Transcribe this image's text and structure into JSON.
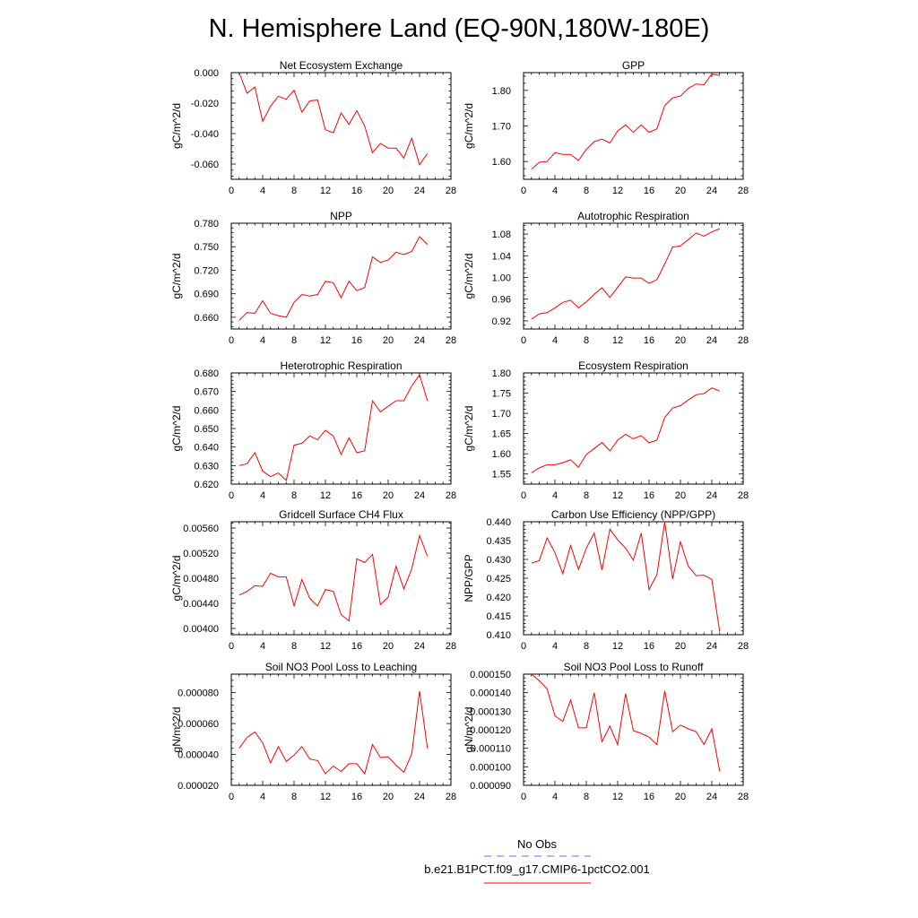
{
  "figure": {
    "title": "N. Hemisphere Land (EQ-90N,180W-180E)",
    "legend": [
      {
        "label": "No Obs",
        "color": "#6666ff",
        "dash": "dashed"
      },
      {
        "label": "b.e21.B1PCT.f09_g17.CMIP6-1pctCO2.001",
        "color": "#ff0000",
        "dash": "solid"
      }
    ]
  },
  "chart_data": [
    {
      "type": "line",
      "title": "Net Ecosystem Exchange",
      "ylabel": "gC/m^2/d",
      "xlim": [
        0,
        28
      ],
      "ylim": [
        -0.07,
        0.0
      ],
      "xticks": [
        "0",
        "4",
        "8",
        "12",
        "16",
        "20",
        "24",
        "28"
      ],
      "yticks": [
        "0.000",
        "-0.020",
        "-0.040",
        "-0.060"
      ],
      "yticks_values": [
        0.0,
        -0.02,
        -0.04,
        -0.06
      ],
      "series": [
        {
          "color": "#ff0000",
          "x": [
            1,
            2,
            3,
            4,
            5,
            6,
            7,
            8,
            9,
            10,
            11,
            12,
            13,
            14,
            15,
            16,
            17,
            18,
            19,
            20,
            21,
            22,
            23,
            24,
            25
          ],
          "y": [
            0.0,
            -0.0135,
            -0.0095,
            -0.032,
            -0.022,
            -0.0155,
            -0.0175,
            -0.0115,
            -0.026,
            -0.0185,
            -0.018,
            -0.0375,
            -0.0395,
            -0.0265,
            -0.034,
            -0.025,
            -0.035,
            -0.0525,
            -0.0465,
            -0.0495,
            -0.0495,
            -0.056,
            -0.043,
            -0.0605,
            -0.053
          ]
        }
      ]
    },
    {
      "type": "line",
      "title": "GPP",
      "ylabel": "gC/m^2/d",
      "xlim": [
        0,
        28
      ],
      "ylim": [
        1.55,
        1.85
      ],
      "xticks": [
        "0",
        "4",
        "8",
        "12",
        "16",
        "20",
        "24",
        "28"
      ],
      "yticks": [
        "1.60",
        "1.70",
        "1.80"
      ],
      "yticks_values": [
        1.6,
        1.7,
        1.8
      ],
      "series": [
        {
          "color": "#ff0000",
          "x": [
            1,
            2,
            3,
            4,
            5,
            6,
            7,
            8,
            9,
            10,
            11,
            12,
            13,
            14,
            15,
            16,
            17,
            18,
            19,
            20,
            21,
            22,
            23,
            24,
            25
          ],
          "y": [
            1.578,
            1.598,
            1.6,
            1.625,
            1.62,
            1.62,
            1.603,
            1.634,
            1.656,
            1.663,
            1.652,
            1.686,
            1.703,
            1.682,
            1.703,
            1.682,
            1.692,
            1.758,
            1.779,
            1.784,
            1.806,
            1.818,
            1.816,
            1.846,
            1.842
          ]
        }
      ]
    },
    {
      "type": "line",
      "title": "NPP",
      "ylabel": "gC/m^2/d",
      "xlim": [
        0,
        28
      ],
      "ylim": [
        0.645,
        0.78
      ],
      "xticks": [
        "0",
        "4",
        "8",
        "12",
        "16",
        "20",
        "24",
        "28"
      ],
      "yticks": [
        "0.660",
        "0.690",
        "0.720",
        "0.750",
        "0.780"
      ],
      "yticks_values": [
        0.66,
        0.69,
        0.72,
        0.75,
        0.78
      ],
      "series": [
        {
          "color": "#ff0000",
          "x": [
            1,
            2,
            3,
            4,
            5,
            6,
            7,
            8,
            9,
            10,
            11,
            12,
            13,
            14,
            15,
            16,
            17,
            18,
            19,
            20,
            21,
            22,
            23,
            24,
            25
          ],
          "y": [
            0.656,
            0.666,
            0.665,
            0.681,
            0.665,
            0.662,
            0.66,
            0.679,
            0.689,
            0.687,
            0.689,
            0.706,
            0.704,
            0.685,
            0.706,
            0.694,
            0.698,
            0.737,
            0.73,
            0.733,
            0.743,
            0.74,
            0.744,
            0.763,
            0.753
          ]
        }
      ]
    },
    {
      "type": "line",
      "title": "Autotrophic Respiration",
      "ylabel": "gC/m^2/d",
      "xlim": [
        0,
        28
      ],
      "ylim": [
        0.905,
        1.1
      ],
      "xticks": [
        "0",
        "4",
        "8",
        "12",
        "16",
        "20",
        "24",
        "28"
      ],
      "yticks": [
        "0.92",
        "0.96",
        "1.00",
        "1.04",
        "1.08"
      ],
      "yticks_values": [
        0.92,
        0.96,
        1.0,
        1.04,
        1.08
      ],
      "series": [
        {
          "color": "#ff0000",
          "x": [
            1,
            2,
            3,
            4,
            5,
            6,
            7,
            8,
            9,
            10,
            11,
            12,
            13,
            14,
            15,
            16,
            17,
            18,
            19,
            20,
            21,
            22,
            23,
            24,
            25
          ],
          "y": [
            0.923,
            0.933,
            0.935,
            0.944,
            0.954,
            0.958,
            0.944,
            0.955,
            0.969,
            0.981,
            0.963,
            0.982,
            1.001,
            0.999,
            0.999,
            0.989,
            0.996,
            1.025,
            1.056,
            1.058,
            1.07,
            1.082,
            1.076,
            1.084,
            1.09
          ]
        }
      ]
    },
    {
      "type": "line",
      "title": "Heterotrophic Respiration",
      "ylabel": "gC/m^2/d",
      "xlim": [
        0,
        28
      ],
      "ylim": [
        0.62,
        0.68
      ],
      "xticks": [
        "0",
        "4",
        "8",
        "12",
        "16",
        "20",
        "24",
        "28"
      ],
      "yticks": [
        "0.620",
        "0.630",
        "0.640",
        "0.650",
        "0.660",
        "0.670",
        "0.680"
      ],
      "yticks_values": [
        0.62,
        0.63,
        0.64,
        0.65,
        0.66,
        0.67,
        0.68
      ],
      "series": [
        {
          "color": "#ff0000",
          "x": [
            1,
            2,
            3,
            4,
            5,
            6,
            7,
            8,
            9,
            10,
            11,
            12,
            13,
            14,
            15,
            16,
            17,
            18,
            19,
            20,
            21,
            22,
            23,
            24,
            25
          ],
          "y": [
            0.63,
            0.631,
            0.637,
            0.627,
            0.624,
            0.626,
            0.622,
            0.641,
            0.642,
            0.646,
            0.644,
            0.649,
            0.646,
            0.636,
            0.645,
            0.637,
            0.638,
            0.665,
            0.659,
            0.662,
            0.665,
            0.665,
            0.673,
            0.679,
            0.665
          ]
        }
      ]
    },
    {
      "type": "line",
      "title": "Ecosystem Respiration",
      "ylabel": "gC/m^2/d",
      "xlim": [
        0,
        28
      ],
      "ylim": [
        1.525,
        1.8
      ],
      "xticks": [
        "0",
        "4",
        "8",
        "12",
        "16",
        "20",
        "24",
        "28"
      ],
      "yticks": [
        "1.55",
        "1.60",
        "1.65",
        "1.70",
        "1.75",
        "1.80"
      ],
      "yticks_values": [
        1.55,
        1.6,
        1.65,
        1.7,
        1.75,
        1.8
      ],
      "series": [
        {
          "color": "#ff0000",
          "x": [
            1,
            2,
            3,
            4,
            5,
            6,
            7,
            8,
            9,
            10,
            11,
            12,
            13,
            14,
            15,
            16,
            17,
            18,
            19,
            20,
            21,
            22,
            23,
            24,
            25
          ],
          "y": [
            1.553,
            1.565,
            1.573,
            1.573,
            1.578,
            1.585,
            1.567,
            1.598,
            1.613,
            1.628,
            1.607,
            1.634,
            1.648,
            1.637,
            1.645,
            1.627,
            1.634,
            1.69,
            1.713,
            1.719,
            1.733,
            1.746,
            1.749,
            1.763,
            1.755
          ]
        }
      ]
    },
    {
      "type": "line",
      "title": "Gridcell Surface CH4 Flux",
      "ylabel": "gC/m^2/d",
      "xlim": [
        0,
        28
      ],
      "ylim": [
        0.0039,
        0.0057
      ],
      "xticks": [
        "0",
        "4",
        "8",
        "12",
        "16",
        "20",
        "24",
        "28"
      ],
      "yticks": [
        "0.00400",
        "0.00440",
        "0.00480",
        "0.00520",
        "0.00560"
      ],
      "yticks_values": [
        0.004,
        0.0044,
        0.0048,
        0.0052,
        0.0056
      ],
      "series": [
        {
          "color": "#ff0000",
          "x": [
            1,
            2,
            3,
            4,
            5,
            6,
            7,
            8,
            9,
            10,
            11,
            12,
            13,
            14,
            15,
            16,
            17,
            18,
            19,
            20,
            21,
            22,
            23,
            24,
            25
          ],
          "y": [
            0.00453,
            0.00459,
            0.00468,
            0.00467,
            0.00488,
            0.00482,
            0.00482,
            0.00436,
            0.00478,
            0.00448,
            0.00436,
            0.00462,
            0.00459,
            0.00422,
            0.00412,
            0.00511,
            0.00505,
            0.00518,
            0.00438,
            0.0045,
            0.00499,
            0.00463,
            0.00495,
            0.00548,
            0.00515
          ]
        }
      ]
    },
    {
      "type": "line",
      "title": "Carbon Use Efficiency (NPP/GPP)",
      "ylabel": "NPP/GPP",
      "xlim": [
        0,
        28
      ],
      "ylim": [
        0.41,
        0.44
      ],
      "xticks": [
        "0",
        "4",
        "8",
        "12",
        "16",
        "20",
        "24",
        "28"
      ],
      "yticks": [
        "0.410",
        "0.415",
        "0.420",
        "0.425",
        "0.430",
        "0.435",
        "0.440"
      ],
      "yticks_values": [
        0.41,
        0.415,
        0.42,
        0.425,
        0.43,
        0.435,
        0.44
      ],
      "series": [
        {
          "color": "#ff0000",
          "x": [
            1,
            2,
            3,
            4,
            5,
            6,
            7,
            8,
            9,
            10,
            11,
            12,
            13,
            14,
            15,
            16,
            17,
            18,
            19,
            20,
            21,
            22,
            23,
            24,
            25
          ],
          "y": [
            0.429,
            0.4297,
            0.4357,
            0.4318,
            0.4262,
            0.4337,
            0.4273,
            0.433,
            0.437,
            0.4272,
            0.438,
            0.4352,
            0.433,
            0.4298,
            0.437,
            0.422,
            0.426,
            0.44,
            0.4248,
            0.4347,
            0.4282,
            0.4257,
            0.4258,
            0.4247,
            0.4108
          ]
        }
      ]
    },
    {
      "type": "line",
      "title": "Soil NO3 Pool Loss to Leaching",
      "ylabel": "gN/m^2/d",
      "xlim": [
        0,
        28
      ],
      "ylim": [
        2e-05,
        9.2e-05
      ],
      "xticks": [
        "0",
        "4",
        "8",
        "12",
        "16",
        "20",
        "24",
        "28"
      ],
      "yticks": [
        "0.000020",
        "0.000040",
        "0.000060",
        "0.000080"
      ],
      "yticks_values": [
        2e-05,
        4e-05,
        6e-05,
        8e-05
      ],
      "series": [
        {
          "color": "#ff0000",
          "x": [
            1,
            2,
            3,
            4,
            5,
            6,
            7,
            8,
            9,
            10,
            11,
            12,
            13,
            14,
            15,
            16,
            17,
            18,
            19,
            20,
            21,
            22,
            23,
            24,
            25
          ],
          "y": [
            4.4e-05,
            5.1e-05,
            5.45e-05,
            4.75e-05,
            3.45e-05,
            4.5e-05,
            3.55e-05,
            3.95e-05,
            4.5e-05,
            3.7e-05,
            3.6e-05,
            2.75e-05,
            3.25e-05,
            2.9e-05,
            3.4e-05,
            3.4e-05,
            2.75e-05,
            4.65e-05,
            3.8e-05,
            3.85e-05,
            3.3e-05,
            2.85e-05,
            4.05e-05,
            8.1e-05,
            4.4e-05
          ]
        }
      ]
    },
    {
      "type": "line",
      "title": "Soil NO3 Pool Loss to Runoff",
      "ylabel": "gN/m^2/d",
      "xlim": [
        0,
        28
      ],
      "ylim": [
        9e-05,
        0.00015
      ],
      "xticks": [
        "0",
        "4",
        "8",
        "12",
        "16",
        "20",
        "24",
        "28"
      ],
      "yticks": [
        "0.000090",
        "0.000100",
        "0.000110",
        "0.000120",
        "0.000130",
        "0.000140",
        "0.000150"
      ],
      "yticks_values": [
        9e-05,
        0.0001,
        0.00011,
        0.00012,
        0.00013,
        0.00014,
        0.00015
      ],
      "series": [
        {
          "color": "#ff0000",
          "x": [
            1,
            2,
            3,
            4,
            5,
            6,
            7,
            8,
            9,
            10,
            11,
            12,
            13,
            14,
            15,
            16,
            17,
            18,
            19,
            20,
            21,
            22,
            23,
            24,
            25
          ],
          "y": [
            0.00015,
            0.0001465,
            0.000142,
            0.0001275,
            0.0001245,
            0.000136,
            0.000121,
            0.000121,
            0.00014,
            0.0001135,
            0.000122,
            0.000112,
            0.0001395,
            0.0001195,
            0.000118,
            0.000116,
            0.000112,
            0.000141,
            0.000119,
            0.0001225,
            0.0001205,
            0.000119,
            0.000112,
            0.0001205,
            9.75e-05
          ]
        }
      ]
    }
  ]
}
